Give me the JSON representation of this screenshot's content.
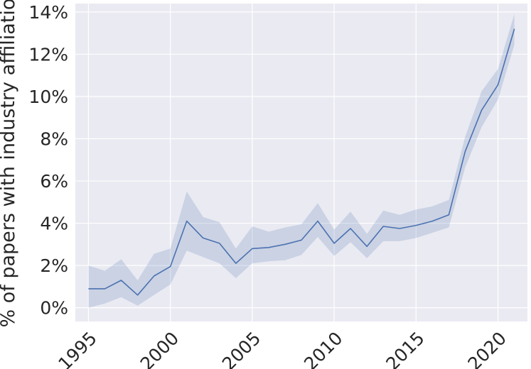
{
  "chart_data": {
    "type": "line",
    "title": "",
    "xlabel": "",
    "ylabel": "% of papers with industry affiliation",
    "x": [
      1995,
      1996,
      1997,
      1998,
      1999,
      2000,
      2001,
      2002,
      2003,
      2004,
      2005,
      2006,
      2007,
      2008,
      2009,
      2010,
      2011,
      2012,
      2013,
      2014,
      2015,
      2016,
      2017,
      2018,
      2019,
      2020,
      2021
    ],
    "series": [
      {
        "values": [
          0.9,
          0.9,
          1.3,
          0.6,
          1.5,
          1.95,
          4.1,
          3.3,
          3.05,
          2.1,
          2.8,
          2.85,
          3.0,
          3.2,
          4.1,
          3.05,
          3.75,
          2.9,
          3.85,
          3.75,
          3.9,
          4.1,
          4.4,
          7.4,
          9.35,
          10.55,
          13.2
        ],
        "ci_lower": [
          0.0,
          0.2,
          0.5,
          0.1,
          0.6,
          1.1,
          2.7,
          2.4,
          2.1,
          1.4,
          2.1,
          2.2,
          2.25,
          2.5,
          3.35,
          2.45,
          3.1,
          2.35,
          3.15,
          3.15,
          3.3,
          3.55,
          3.8,
          6.65,
          8.55,
          9.85,
          12.45
        ],
        "ci_upper": [
          2.0,
          1.75,
          2.3,
          1.3,
          2.55,
          2.8,
          5.5,
          4.3,
          4.05,
          2.8,
          3.85,
          3.6,
          3.8,
          3.95,
          4.95,
          3.7,
          4.55,
          3.5,
          4.6,
          4.4,
          4.65,
          4.8,
          5.1,
          8.1,
          10.25,
          11.3,
          13.9
        ]
      }
    ],
    "xlim": [
      1994.2,
      2021.8
    ],
    "ylim": [
      -0.65,
      14.4
    ],
    "xticks": [
      1995,
      2000,
      2005,
      2010,
      2015,
      2020
    ],
    "yticks": [
      0,
      2,
      4,
      6,
      8,
      10,
      12,
      14
    ],
    "ytick_labels": [
      "0%",
      "2%",
      "4%",
      "6%",
      "8%",
      "10%",
      "12%",
      "14%"
    ],
    "grid": true,
    "colors": {
      "background": "#eaeaf2",
      "grid": "#ffffff",
      "line": "#4c72b0",
      "band": "#4c72b0",
      "text": "#262626"
    }
  }
}
